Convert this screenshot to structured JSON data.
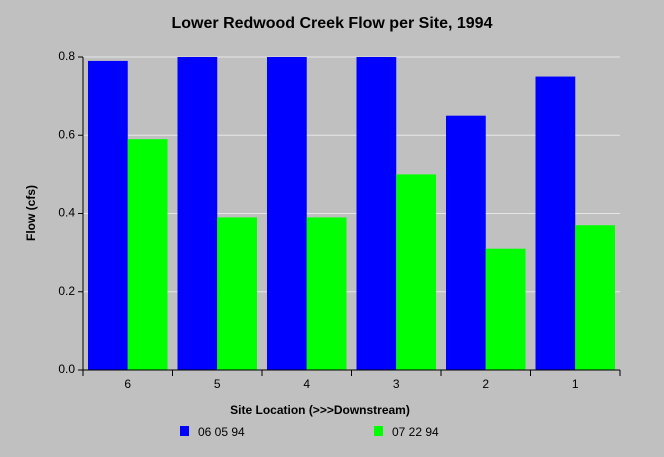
{
  "chart_data": {
    "type": "bar",
    "title": "Lower Redwood Creek Flow per Site, 1994",
    "x_label": "Site Location (>>>Downstream)",
    "y_label": "Flow (cfs)",
    "categories": [
      "6",
      "5",
      "4",
      "3",
      "2",
      "1"
    ],
    "series": [
      {
        "name": "06 05 94",
        "color": "#0000ff",
        "values": [
          0.79,
          0.8,
          0.8,
          0.8,
          0.65,
          0.75
        ]
      },
      {
        "name": "07 22 94",
        "color": "#00ff00",
        "values": [
          0.59,
          0.39,
          0.39,
          0.5,
          0.31,
          0.37
        ]
      }
    ],
    "ylim": [
      0,
      0.8
    ],
    "yticks": [
      {
        "value": 0,
        "label": "0.0"
      },
      0.2,
      0.4,
      0.6,
      0.8
    ],
    "grid": true,
    "legend": "bottom"
  }
}
